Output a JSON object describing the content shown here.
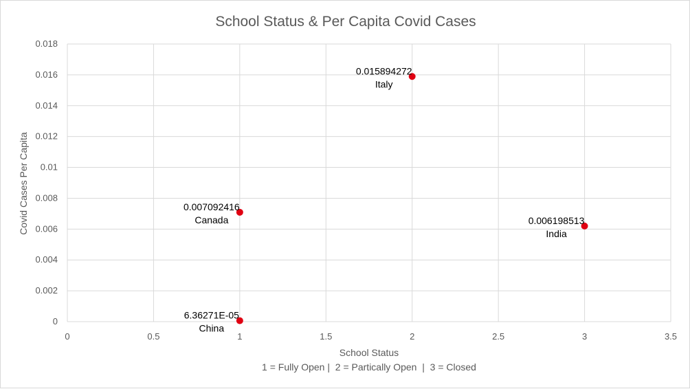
{
  "chart_data": {
    "type": "scatter",
    "title": "School Status & Per Capita Covid Cases",
    "xlabel": "School Status",
    "xlabel_note": "1 = Fully Open |  2 = Partically Open  |  3 = Closed",
    "ylabel": "Covid Cases Per Capita",
    "xlim": [
      0,
      3.5
    ],
    "ylim": [
      0,
      0.018
    ],
    "x_ticks": [
      "0",
      "0.5",
      "1",
      "1.5",
      "2",
      "2.5",
      "3",
      "3.5"
    ],
    "y_ticks": [
      "0",
      "0.002",
      "0.004",
      "0.006",
      "0.008",
      "0.01",
      "0.012",
      "0.014",
      "0.016",
      "0.018"
    ],
    "grid": true,
    "marker_color": "#e00012",
    "points": [
      {
        "x": 1,
        "y": 0.007092416,
        "value_label": "0.007092416",
        "name": "Canada"
      },
      {
        "x": 1,
        "y": 6.36271e-05,
        "value_label": "6.36271E-05",
        "name": "China"
      },
      {
        "x": 2,
        "y": 0.015894272,
        "value_label": "0.015894272",
        "name": "Italy"
      },
      {
        "x": 3,
        "y": 0.006198513,
        "value_label": "0.006198513",
        "name": "India"
      }
    ]
  }
}
